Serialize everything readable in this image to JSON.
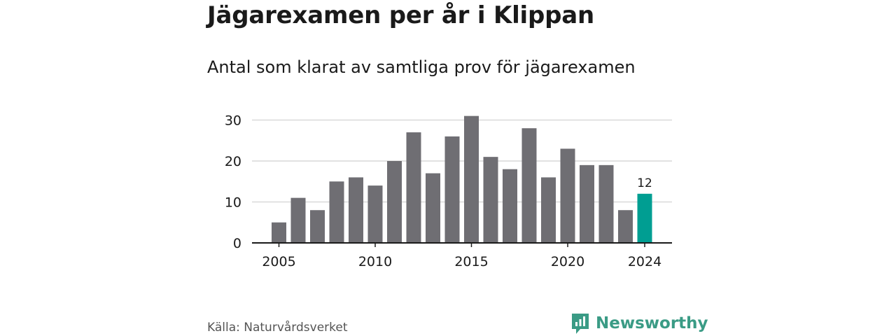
{
  "header": {
    "title": "Jägarexamen per år i Klippan",
    "subtitle": "Antal som klarat av samtliga prov för jägarexamen"
  },
  "footer": {
    "source": "Källa: Naturvårdsverket",
    "brand": "Newsworthy"
  },
  "colors": {
    "bar": "#6f6e73",
    "highlight": "#009e92",
    "grid": "#d9d9d9",
    "axis": "#1a1a1a",
    "brand": "#3a9b85"
  },
  "chart_data": {
    "type": "bar",
    "x": [
      2005,
      2006,
      2007,
      2008,
      2009,
      2010,
      2011,
      2012,
      2013,
      2014,
      2015,
      2016,
      2017,
      2018,
      2019,
      2020,
      2021,
      2022,
      2023,
      2024
    ],
    "values": [
      5,
      11,
      8,
      15,
      16,
      14,
      20,
      27,
      17,
      26,
      31,
      21,
      18,
      28,
      16,
      23,
      19,
      19,
      8,
      12
    ],
    "highlight_index": 19,
    "highlight_label": "12",
    "xticks": [
      2005,
      2010,
      2015,
      2020,
      2024
    ],
    "yticks": [
      0,
      10,
      20,
      30
    ],
    "ylim": [
      0,
      31
    ],
    "grid": true
  }
}
